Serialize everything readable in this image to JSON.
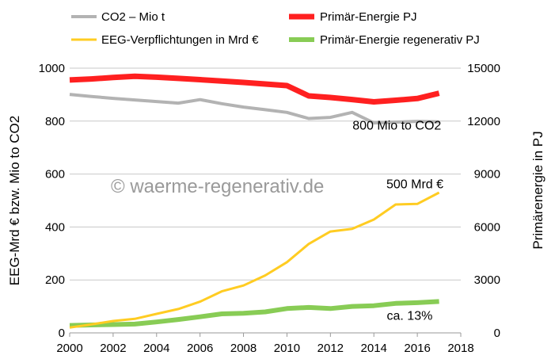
{
  "chart_data": {
    "type": "line",
    "ylabel_left": "EEG-Mrd €  bzw.    Mio to CO2",
    "ylabel_right": "Primärenergie in PJ",
    "x_ticks": [
      "2000",
      "2002",
      "2004",
      "2006",
      "2008",
      "2010",
      "2012",
      "2014",
      "2016",
      "2018"
    ],
    "y_left_ticks": [
      "0",
      "200",
      "400",
      "600",
      "800",
      "1000"
    ],
    "y_right_ticks": [
      "0",
      "3000",
      "6000",
      "9000",
      "12000",
      "15000"
    ],
    "xlim": [
      2000,
      2018
    ],
    "ylim_left": [
      0,
      1000
    ],
    "ylim_right": [
      0,
      15000
    ],
    "grid": "horizontal",
    "legend_placement": "top",
    "watermark": "© waerme-regenerativ.de",
    "series": [
      {
        "name": "CO2 – Mio t",
        "axis": "left",
        "color": "#b3b3b3",
        "width": 4,
        "x": [
          2000,
          2001,
          2002,
          2003,
          2004,
          2005,
          2006,
          2007,
          2008,
          2009,
          2010,
          2011,
          2012,
          2013,
          2014,
          2015,
          2016,
          2017
        ],
        "values": [
          901,
          893,
          886,
          880,
          874,
          868,
          881,
          866,
          853,
          843,
          833,
          810,
          814,
          833,
          793,
          796,
          799,
          797
        ]
      },
      {
        "name": "Primär-Energie PJ",
        "axis": "right",
        "color": "#ff2020",
        "width": 7,
        "x": [
          2000,
          2001,
          2002,
          2003,
          2004,
          2005,
          2006,
          2007,
          2008,
          2009,
          2010,
          2011,
          2012,
          2013,
          2014,
          2015,
          2016,
          2017
        ],
        "values": [
          14330,
          14390,
          14470,
          14540,
          14490,
          14420,
          14350,
          14270,
          14190,
          14100,
          14010,
          13430,
          13340,
          13220,
          13090,
          13180,
          13280,
          13580
        ]
      },
      {
        "name": "EEG-Verpflichtungen in Mrd €",
        "axis": "left",
        "color": "#ffcc22",
        "width": 3,
        "x": [
          2000,
          2001,
          2002,
          2003,
          2004,
          2005,
          2006,
          2007,
          2008,
          2009,
          2010,
          2011,
          2012,
          2013,
          2014,
          2015,
          2016,
          2017
        ],
        "values": [
          20,
          32,
          45,
          53,
          72,
          90,
          118,
          157,
          179,
          217,
          267,
          336,
          383,
          393,
          428,
          485,
          487,
          530
        ]
      },
      {
        "name": "Primär-Energie regenerativ PJ",
        "axis": "right",
        "color": "#88cc55",
        "width": 6,
        "x": [
          2000,
          2001,
          2002,
          2003,
          2004,
          2005,
          2006,
          2007,
          2008,
          2009,
          2010,
          2011,
          2012,
          2013,
          2014,
          2015,
          2016,
          2017
        ],
        "values": [
          420,
          450,
          470,
          500,
          620,
          760,
          910,
          1080,
          1110,
          1190,
          1380,
          1440,
          1380,
          1500,
          1540,
          1670,
          1710,
          1780
        ]
      }
    ],
    "annotations": [
      {
        "text": "800 Mio to CO2",
        "x": 2017.1,
        "y": 768,
        "axis": "left",
        "anchor": "end"
      },
      {
        "text": "500 Mrd €",
        "x": 2017.2,
        "y": 546,
        "axis": "left",
        "anchor": "end"
      },
      {
        "text": "ca. 13%",
        "x": 2016.7,
        "y": 50,
        "axis": "left",
        "anchor": "end"
      }
    ]
  }
}
